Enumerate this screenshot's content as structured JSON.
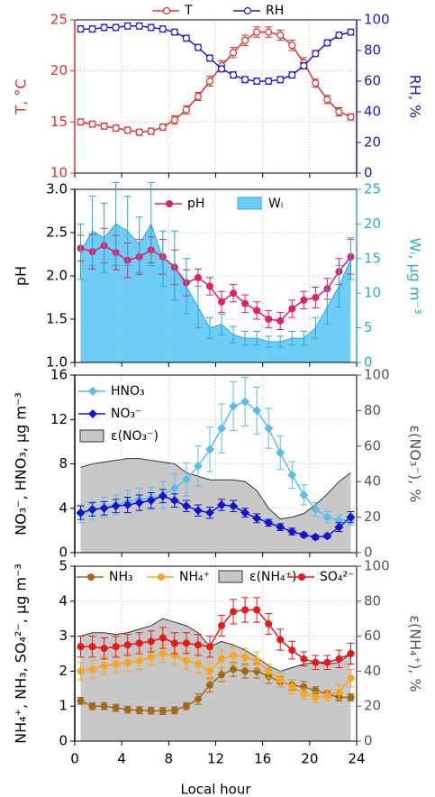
{
  "chart_data": [
    {
      "type": "line",
      "xlabel": null,
      "x": [
        0.5,
        1.5,
        2.5,
        3.5,
        4.5,
        5.5,
        6.5,
        7.5,
        8.5,
        9.5,
        10.5,
        11.5,
        12.5,
        13.5,
        14.5,
        15.5,
        16.5,
        17.5,
        18.5,
        19.5,
        20.5,
        21.5,
        22.5,
        23.5
      ],
      "xlim": [
        0,
        24
      ],
      "xticks": [
        0,
        4,
        8,
        12,
        16,
        20,
        24
      ],
      "ylabel": "T, °C",
      "ylim": [
        10,
        25
      ],
      "yticks": [
        10,
        15,
        20,
        25
      ],
      "ycolor": "#e0302a",
      "y2label": "RH, %",
      "y2lim": [
        0,
        100
      ],
      "y2ticks": [
        0,
        20,
        40,
        60,
        80,
        100
      ],
      "y2color": "#1a1ad0",
      "grid": true,
      "legend": "above",
      "series": [
        {
          "name": "T",
          "color": "#e0302a",
          "marker": "circle-open",
          "values": [
            15.0,
            14.8,
            14.6,
            14.4,
            14.2,
            14.0,
            14.1,
            14.5,
            15.2,
            16.2,
            17.5,
            19.0,
            20.5,
            21.8,
            23.0,
            23.8,
            23.8,
            23.5,
            22.5,
            20.8,
            18.8,
            17.2,
            16.0,
            15.5
          ],
          "errors": [
            0.3,
            0.3,
            0.3,
            0.3,
            0.3,
            0.3,
            0.3,
            0.3,
            0.4,
            0.4,
            0.4,
            0.5,
            0.5,
            0.5,
            0.5,
            0.5,
            0.5,
            0.5,
            0.5,
            0.5,
            0.4,
            0.4,
            0.4,
            0.3
          ]
        },
        {
          "name": "RH",
          "color": "#1a1ad0",
          "marker": "circle-open",
          "axis": "y2",
          "values": [
            94,
            94,
            95,
            95,
            96,
            96,
            95,
            94,
            92,
            88,
            82,
            75,
            68,
            64,
            61,
            60,
            60,
            61,
            64,
            70,
            78,
            85,
            90,
            92
          ],
          "errors": [
            2,
            2,
            2,
            2,
            2,
            2,
            2,
            2,
            2,
            2,
            2,
            2,
            2,
            2,
            2,
            2,
            2,
            2,
            2,
            2,
            2,
            2,
            2,
            2
          ]
        }
      ]
    },
    {
      "type": "line",
      "x": [
        0.5,
        1.5,
        2.5,
        3.5,
        4.5,
        5.5,
        6.5,
        7.5,
        8.5,
        9.5,
        10.5,
        11.5,
        12.5,
        13.5,
        14.5,
        15.5,
        16.5,
        17.5,
        18.5,
        19.5,
        20.5,
        21.5,
        22.5,
        23.5
      ],
      "xlim": [
        0,
        24
      ],
      "xticks": [
        0,
        4,
        8,
        12,
        16,
        20,
        24
      ],
      "ylabel": "pH",
      "ylim": [
        1.0,
        3.0
      ],
      "yticks": [
        {
          "value": 1.0,
          "label": "1.0"
        },
        1.5,
        {
          "value": 2.0,
          "label": "2.0"
        },
        2.5,
        {
          "value": 3.0,
          "label": "3.0"
        }
      ],
      "ycolor": "#000000",
      "y2label": "Wᵢ, µg m⁻³",
      "y2lim": [
        0,
        25
      ],
      "y2ticks": [
        0,
        5,
        10,
        15,
        20,
        25
      ],
      "y2color": "#2aa8e0",
      "grid": true,
      "legend": "upper center",
      "series": [
        {
          "name": "pH",
          "color": "#e0206a",
          "marker": "circle",
          "values": [
            2.32,
            2.28,
            2.35,
            2.27,
            2.18,
            2.22,
            2.3,
            2.22,
            2.1,
            1.92,
            1.98,
            1.88,
            1.7,
            1.8,
            1.68,
            1.6,
            1.5,
            1.48,
            1.62,
            1.72,
            1.75,
            1.85,
            2.05,
            2.22
          ],
          "errors": [
            0.15,
            0.2,
            0.2,
            0.2,
            0.2,
            0.2,
            0.15,
            0.2,
            0.2,
            0.15,
            0.1,
            0.1,
            0.12,
            0.1,
            0.1,
            0.1,
            0.1,
            0.1,
            0.1,
            0.1,
            0.12,
            0.12,
            0.15,
            0.2
          ]
        },
        {
          "name": "Wᵢ",
          "color": "#2aa8e0",
          "fill": "#6dcdf5",
          "kind": "area",
          "axis": "y2",
          "values": [
            16,
            19,
            18,
            20,
            19,
            17,
            20,
            15,
            14,
            11,
            8,
            5,
            5.5,
            4,
            3.5,
            3.5,
            3,
            3,
            3.5,
            3.5,
            5,
            8,
            11,
            15
          ],
          "errors": [
            4,
            5,
            5,
            6,
            5,
            4,
            6,
            4,
            5,
            4,
            3,
            1.5,
            1.5,
            1.2,
            1,
            1,
            0.8,
            0.8,
            1,
            1,
            1.5,
            2.5,
            3,
            3
          ]
        }
      ]
    },
    {
      "type": "line",
      "x": [
        0.5,
        1.5,
        2.5,
        3.5,
        4.5,
        5.5,
        6.5,
        7.5,
        8.5,
        9.5,
        10.5,
        11.5,
        12.5,
        13.5,
        14.5,
        15.5,
        16.5,
        17.5,
        18.5,
        19.5,
        20.5,
        21.5,
        22.5,
        23.5
      ],
      "xlim": [
        0,
        24
      ],
      "xticks": [
        0,
        4,
        8,
        12,
        16,
        20,
        24
      ],
      "ylabel": "NO₃⁻, HNO₃, µg m⁻³",
      "ylim": [
        0,
        16
      ],
      "yticks": [
        0,
        4,
        8,
        12,
        16
      ],
      "ycolor": "#000000",
      "y2label": "ε(NO₃⁻), %",
      "y2lim": [
        0,
        100
      ],
      "y2ticks": [
        0,
        20,
        40,
        60,
        80,
        100
      ],
      "y2color": "#555555",
      "grid": true,
      "legend": "upper left",
      "series": [
        {
          "name": "HNO₃",
          "color": "#5bbcea",
          "marker": "diamond",
          "values": [
            3.5,
            3.8,
            4.1,
            4.3,
            4.6,
            4.8,
            4.9,
            5.2,
            5.8,
            6.6,
            7.8,
            9.3,
            11.2,
            13.2,
            13.6,
            12.8,
            11.2,
            9.0,
            7.0,
            5.2,
            3.9,
            3.2,
            2.9,
            3.0
          ],
          "errors": [
            0.8,
            0.8,
            0.9,
            0.9,
            1,
            1,
            1,
            1.2,
            1.3,
            1.5,
            1.8,
            2,
            2.2,
            2.2,
            2.2,
            2.1,
            1.8,
            1.5,
            1.2,
            0.9,
            0.6,
            0.5,
            0.5,
            0.5
          ]
        },
        {
          "name": "NO₃⁻",
          "color": "#1515c8",
          "marker": "diamond",
          "values": [
            3.6,
            3.9,
            4.0,
            4.2,
            4.3,
            4.5,
            4.7,
            5.1,
            4.7,
            4.2,
            3.8,
            3.6,
            4.3,
            4.2,
            3.6,
            3.1,
            2.7,
            2.3,
            1.9,
            1.6,
            1.4,
            1.5,
            2.3,
            3.2
          ],
          "errors": [
            0.6,
            0.6,
            0.6,
            0.6,
            0.7,
            0.7,
            0.7,
            0.6,
            0.6,
            0.5,
            0.5,
            0.5,
            0.5,
            0.5,
            0.4,
            0.4,
            0.3,
            0.3,
            0.3,
            0.2,
            0.2,
            0.2,
            0.4,
            0.5
          ]
        },
        {
          "name": "ε(NO₃⁻)",
          "color": "#333333",
          "fill": "#c8c8c8",
          "kind": "area",
          "axis": "y2",
          "values": [
            48,
            50,
            51,
            52,
            53,
            53,
            52,
            51,
            50,
            45,
            43,
            41,
            41,
            41,
            40,
            35,
            25,
            19,
            20,
            22,
            27,
            33,
            40,
            45
          ]
        }
      ]
    },
    {
      "type": "line",
      "x": [
        0.5,
        1.5,
        2.5,
        3.5,
        4.5,
        5.5,
        6.5,
        7.5,
        8.5,
        9.5,
        10.5,
        11.5,
        12.5,
        13.5,
        14.5,
        15.5,
        16.5,
        17.5,
        18.5,
        19.5,
        20.5,
        21.5,
        22.5,
        23.5
      ],
      "xlim": [
        0,
        24
      ],
      "xticks": [
        0,
        4,
        8,
        12,
        16,
        20,
        24
      ],
      "xlabel": "Local hour",
      "ylabel": "NH₄⁺, NH₃, SO₄²⁻, µg m⁻³",
      "ylim": [
        0,
        5
      ],
      "yticks": [
        0,
        1,
        2,
        3,
        4,
        5
      ],
      "ycolor": "#000000",
      "y2label": "ε(NH₄⁺), %",
      "y2lim": [
        0,
        100
      ],
      "y2ticks": [
        0,
        20,
        40,
        60,
        80,
        100
      ],
      "y2color": "#555555",
      "grid": true,
      "legend": "upper row",
      "series": [
        {
          "name": "NH₃",
          "color": "#a06a1a",
          "marker": "circle",
          "values": [
            1.15,
            1.0,
            1.0,
            0.95,
            0.9,
            0.88,
            0.87,
            0.86,
            0.88,
            1.0,
            1.2,
            1.6,
            1.9,
            2.05,
            2.0,
            2.0,
            1.85,
            1.7,
            1.6,
            1.55,
            1.45,
            1.35,
            1.25,
            1.25
          ],
          "errors": [
            0.1,
            0.1,
            0.1,
            0.1,
            0.1,
            0.1,
            0.1,
            0.1,
            0.1,
            0.1,
            0.15,
            0.2,
            0.2,
            0.2,
            0.2,
            0.2,
            0.2,
            0.15,
            0.15,
            0.15,
            0.1,
            0.1,
            0.1,
            0.1
          ]
        },
        {
          "name": "NH₄⁺",
          "color": "#f5a623",
          "marker": "circle",
          "values": [
            2.0,
            2.05,
            2.15,
            2.2,
            2.25,
            2.3,
            2.4,
            2.5,
            2.45,
            2.3,
            2.2,
            2.0,
            2.35,
            2.45,
            2.4,
            2.3,
            2.0,
            1.75,
            1.55,
            1.35,
            1.25,
            1.3,
            1.4,
            1.8
          ],
          "errors": [
            0.25,
            0.25,
            0.25,
            0.25,
            0.25,
            0.25,
            0.25,
            0.25,
            0.25,
            0.25,
            0.25,
            0.25,
            0.25,
            0.25,
            0.25,
            0.25,
            0.2,
            0.2,
            0.2,
            0.15,
            0.15,
            0.15,
            0.2,
            0.25
          ]
        },
        {
          "name": "ε(NH₄⁺)",
          "color": "#333333",
          "fill": "#c8c8c8",
          "kind": "area",
          "axis": "y2",
          "values": [
            60,
            62,
            62,
            61,
            62,
            64,
            66,
            70,
            68,
            66,
            62,
            54,
            57,
            55,
            52,
            48,
            43,
            40,
            42,
            44,
            45,
            44,
            45,
            50
          ]
        },
        {
          "name": "SO₄²⁻",
          "color": "#e81818",
          "marker": "circle",
          "values": [
            2.7,
            2.7,
            2.65,
            2.7,
            2.75,
            2.8,
            2.85,
            2.95,
            2.8,
            2.8,
            2.75,
            2.7,
            3.3,
            3.7,
            3.75,
            3.75,
            3.35,
            2.9,
            2.6,
            2.35,
            2.25,
            2.25,
            2.35,
            2.5
          ],
          "errors": [
            0.3,
            0.3,
            0.3,
            0.3,
            0.3,
            0.3,
            0.3,
            0.3,
            0.3,
            0.3,
            0.3,
            0.3,
            0.3,
            0.35,
            0.35,
            0.35,
            0.3,
            0.3,
            0.25,
            0.2,
            0.2,
            0.2,
            0.25,
            0.3
          ]
        }
      ]
    }
  ]
}
